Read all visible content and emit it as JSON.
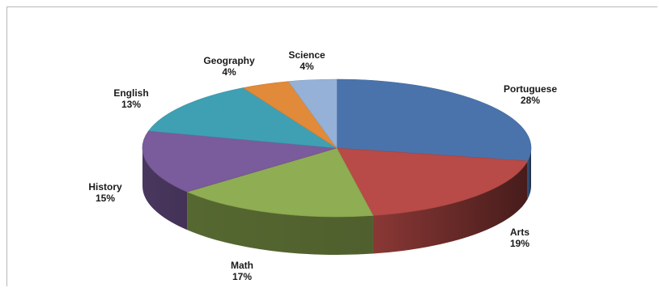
{
  "chart_data": {
    "type": "pie",
    "title": "",
    "style": "3d-exploded-none",
    "series": [
      {
        "label": "Portuguese",
        "value": 28,
        "display": "28%",
        "color": "#4a73ac"
      },
      {
        "label": "Arts",
        "value": 19,
        "display": "19%",
        "color": "#b84a47"
      },
      {
        "label": "Math",
        "value": 17,
        "display": "17%",
        "color": "#8fad52"
      },
      {
        "label": "History",
        "value": 15,
        "display": "15%",
        "color": "#7a5b9c"
      },
      {
        "label": "English",
        "value": 13,
        "display": "13%",
        "color": "#3fa0b4"
      },
      {
        "label": "Geography",
        "value": 4,
        "display": "4%",
        "color": "#e08a3a"
      },
      {
        "label": "Science",
        "value": 4,
        "display": "4%",
        "color": "#95b1d8"
      }
    ]
  }
}
